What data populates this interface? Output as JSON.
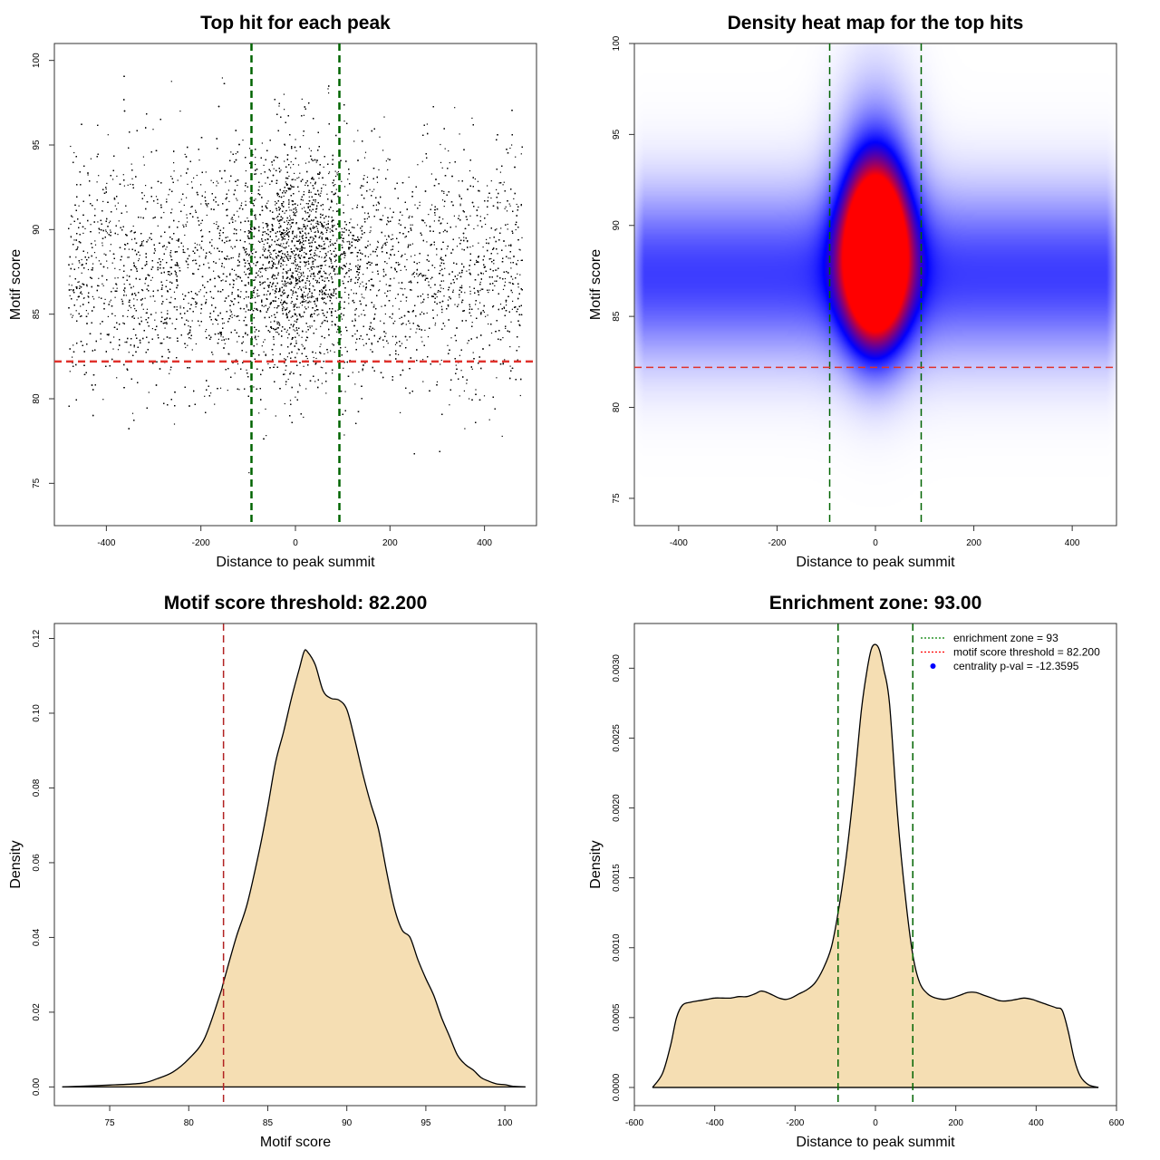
{
  "chart_data": [
    {
      "type": "scatter",
      "title": "Top hit for each peak",
      "xlabel": "Distance to peak summit",
      "ylabel": "Motif score",
      "xlim": [
        -510,
        510
      ],
      "ylim": [
        72.5,
        101
      ],
      "xticks": [
        "-400",
        "-200",
        "0",
        "200",
        "400"
      ],
      "xtick_values": [
        -400,
        -200,
        0,
        200,
        400
      ],
      "yticks": [
        "75",
        "80",
        "85",
        "90",
        "95",
        "100"
      ],
      "ytick_values": [
        75,
        80,
        85,
        90,
        95,
        100
      ],
      "point_count": 16000,
      "x_range": [
        -480,
        480
      ],
      "y_range": [
        74,
        100
      ],
      "background_cluster": {
        "x_range": [
          -480,
          480
        ],
        "y_mean": 87.5,
        "y_sd": 3.5
      },
      "central_cluster": {
        "x_mean": 0,
        "x_sd": 60,
        "y_mean": 88.5,
        "y_sd": 3.2
      },
      "reference_lines": [
        {
          "axis": "x",
          "value": -93,
          "color": "#006400",
          "style": "dashed"
        },
        {
          "axis": "x",
          "value": 93,
          "color": "#006400",
          "style": "dashed"
        },
        {
          "axis": "y",
          "value": 82.2,
          "color": "#e0312c",
          "style": "dashed"
        }
      ]
    },
    {
      "type": "heatmap",
      "title": "Density heat map for the top hits",
      "xlabel": "Distance to peak summit",
      "ylabel": "Motif score",
      "xlim": [
        -490,
        490
      ],
      "ylim": [
        73.5,
        100
      ],
      "xticks": [
        "-400",
        "-200",
        "0",
        "200",
        "400"
      ],
      "xtick_values": [
        -400,
        -200,
        0,
        200,
        400
      ],
      "yticks": [
        "75",
        "80",
        "85",
        "90",
        "95",
        "100"
      ],
      "ytick_values": [
        75,
        80,
        85,
        90,
        95,
        100
      ],
      "color_scale": [
        "#ffffff",
        "#0000ff",
        "#ff0000"
      ],
      "hotspot": {
        "x": 0,
        "y": 88
      },
      "reference_lines": [
        {
          "axis": "x",
          "value": -93,
          "color": "#006400",
          "style": "dashed"
        },
        {
          "axis": "x",
          "value": 93,
          "color": "#006400",
          "style": "dashed"
        },
        {
          "axis": "y",
          "value": 82.2,
          "color": "#e0312c",
          "style": "dashed"
        }
      ]
    },
    {
      "type": "area",
      "title": "Motif score threshold: 82.200",
      "xlabel": "Motif score",
      "ylabel": "Density",
      "xlim": [
        71.5,
        102
      ],
      "ylim": [
        -0.005,
        0.124
      ],
      "xticks": [
        "75",
        "80",
        "85",
        "90",
        "95",
        "100"
      ],
      "xtick_values": [
        75,
        80,
        85,
        90,
        95,
        100
      ],
      "yticks": [
        "0.00",
        "0.02",
        "0.04",
        "0.06",
        "0.08",
        "0.10",
        "0.12"
      ],
      "ytick_values": [
        0,
        0.02,
        0.04,
        0.06,
        0.08,
        0.1,
        0.12
      ],
      "fill": "#f5deb3",
      "x": [
        72,
        75,
        77,
        78,
        79,
        80,
        81,
        82,
        82.2,
        83,
        83.7,
        84.5,
        85,
        85.5,
        86,
        86.5,
        87,
        87.3,
        87.5,
        88,
        88.5,
        89,
        89.5,
        90,
        90.5,
        91,
        91.5,
        92,
        92.5,
        93,
        93.5,
        94,
        94.5,
        95,
        95.5,
        96,
        96.5,
        97,
        97.5,
        98,
        98.5,
        99,
        99.5,
        100,
        100.5,
        101.3
      ],
      "y": [
        0,
        0.0005,
        0.001,
        0.0022,
        0.004,
        0.0075,
        0.013,
        0.025,
        0.028,
        0.04,
        0.049,
        0.064,
        0.075,
        0.087,
        0.095,
        0.104,
        0.112,
        0.1165,
        0.1165,
        0.113,
        0.106,
        0.104,
        0.1035,
        0.101,
        0.093,
        0.084,
        0.076,
        0.069,
        0.058,
        0.048,
        0.042,
        0.04,
        0.034,
        0.029,
        0.0245,
        0.0185,
        0.0135,
        0.0085,
        0.006,
        0.0045,
        0.0025,
        0.0015,
        0.0008,
        0.0006,
        0.0002,
        0
      ],
      "reference_lines": [
        {
          "axis": "x",
          "value": 82.2,
          "color": "#b22222",
          "style": "dashed"
        }
      ]
    },
    {
      "type": "area",
      "title": "Enrichment zone: 93.00",
      "xlabel": "Distance to peak summit",
      "ylabel": "Density",
      "xlim": [
        -600,
        600
      ],
      "ylim": [
        -0.00013,
        0.00332
      ],
      "xticks": [
        "-600",
        "-400",
        "-200",
        "0",
        "200",
        "400",
        "600"
      ],
      "xtick_values": [
        -600,
        -400,
        -200,
        0,
        200,
        400,
        600
      ],
      "yticks": [
        "0.0000",
        "0.0005",
        "0.0010",
        "0.0015",
        "0.0020",
        "0.0025",
        "0.0030"
      ],
      "ytick_values": [
        0,
        0.0005,
        0.001,
        0.0015,
        0.002,
        0.0025,
        0.003
      ],
      "fill": "#f5deb3",
      "x": [
        -555,
        -530,
        -510,
        -495,
        -480,
        -460,
        -440,
        -420,
        -400,
        -380,
        -360,
        -340,
        -320,
        -300,
        -285,
        -270,
        -255,
        -240,
        -225,
        -210,
        -190,
        -170,
        -150,
        -130,
        -110,
        -93,
        -75,
        -55,
        -35,
        -20,
        -10,
        0,
        10,
        20,
        35,
        55,
        75,
        93,
        110,
        130,
        150,
        170,
        190,
        210,
        230,
        250,
        270,
        290,
        310,
        330,
        350,
        370,
        390,
        410,
        430,
        450,
        465,
        480,
        495,
        510,
        530,
        555
      ],
      "y": [
        0,
        0.0001,
        0.0003,
        0.0005,
        0.00059,
        0.00061,
        0.00062,
        0.00063,
        0.00064,
        0.00064,
        0.00064,
        0.00065,
        0.00065,
        0.00067,
        0.00069,
        0.00068,
        0.00066,
        0.00064,
        0.00063,
        0.00064,
        0.00067,
        0.0007,
        0.00075,
        0.00085,
        0.001,
        0.00125,
        0.0016,
        0.0021,
        0.0027,
        0.003,
        0.00314,
        0.00317,
        0.00313,
        0.003,
        0.00275,
        0.00195,
        0.00135,
        0.00095,
        0.00075,
        0.00067,
        0.00064,
        0.00063,
        0.00064,
        0.00066,
        0.00068,
        0.00068,
        0.00066,
        0.00064,
        0.00062,
        0.00062,
        0.00063,
        0.00064,
        0.00063,
        0.00061,
        0.00059,
        0.00057,
        0.00055,
        0.0004,
        0.0002,
        8e-05,
        2e-05,
        0
      ],
      "reference_lines": [
        {
          "axis": "x",
          "value": -93,
          "color": "#006400",
          "style": "dashed"
        },
        {
          "axis": "x",
          "value": 93,
          "color": "#006400",
          "style": "dashed"
        }
      ],
      "legend": {
        "placement": "top-right",
        "items": [
          {
            "label": "enrichment zone = 93",
            "symbol": "dotted-line",
            "color": "#008000"
          },
          {
            "label": "motif score threshold = 82.200",
            "symbol": "dotted-line",
            "color": "#ff0000"
          },
          {
            "label": "centrality p-val = -12.3595",
            "symbol": "point",
            "color": "#0000ff"
          }
        ]
      }
    }
  ]
}
